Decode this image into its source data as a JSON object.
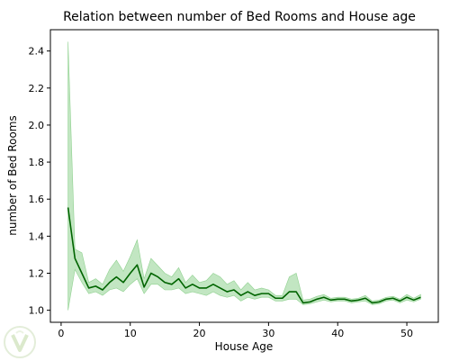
{
  "chart_data": {
    "type": "line",
    "title": "Relation between number of Bed Rooms and House age",
    "xlabel": "House Age",
    "ylabel": "number of Bed Rooms",
    "xlim": [
      -1.55,
      54.55
    ],
    "ylim": [
      0.935,
      2.515
    ],
    "xticks": [
      0,
      10,
      20,
      30,
      40,
      50
    ],
    "yticks": [
      1.0,
      1.2,
      1.4,
      1.6,
      1.8,
      2.0,
      2.2,
      2.4
    ],
    "ytick_labels": [
      "1.0",
      "1.2",
      "1.4",
      "1.6",
      "1.8",
      "2.0",
      "2.2",
      "2.4"
    ],
    "grid": false,
    "colors": {
      "line": "#006400",
      "band": "#8fd18f"
    },
    "series": [
      {
        "x": [
          1,
          2,
          3,
          4,
          5,
          6,
          7,
          8,
          9,
          10,
          11,
          12,
          13,
          14,
          15,
          16,
          17,
          18,
          19,
          20,
          21,
          22,
          23,
          24,
          25,
          26,
          27,
          28,
          29,
          30,
          31,
          32,
          33,
          34,
          35,
          36,
          37,
          38,
          39,
          40,
          41,
          42,
          43,
          44,
          45,
          46,
          47,
          48,
          49,
          50,
          51,
          52
        ],
        "y": [
          1.555,
          1.28,
          1.2,
          1.12,
          1.13,
          1.11,
          1.15,
          1.18,
          1.15,
          1.2,
          1.245,
          1.125,
          1.2,
          1.18,
          1.15,
          1.14,
          1.17,
          1.12,
          1.14,
          1.12,
          1.12,
          1.14,
          1.12,
          1.1,
          1.11,
          1.08,
          1.1,
          1.08,
          1.09,
          1.09,
          1.065,
          1.065,
          1.1,
          1.1,
          1.04,
          1.045,
          1.06,
          1.07,
          1.055,
          1.06,
          1.06,
          1.05,
          1.055,
          1.065,
          1.04,
          1.045,
          1.06,
          1.065,
          1.05,
          1.07,
          1.055,
          1.07
        ],
        "lower": [
          1.0,
          1.22,
          1.15,
          1.09,
          1.1,
          1.08,
          1.11,
          1.12,
          1.1,
          1.14,
          1.17,
          1.09,
          1.14,
          1.14,
          1.11,
          1.11,
          1.12,
          1.09,
          1.1,
          1.09,
          1.08,
          1.1,
          1.08,
          1.07,
          1.08,
          1.05,
          1.07,
          1.06,
          1.07,
          1.07,
          1.05,
          1.05,
          1.06,
          1.06,
          1.03,
          1.035,
          1.045,
          1.055,
          1.045,
          1.05,
          1.05,
          1.04,
          1.045,
          1.05,
          1.03,
          1.035,
          1.05,
          1.055,
          1.04,
          1.055,
          1.045,
          1.06
        ],
        "upper": [
          2.45,
          1.33,
          1.31,
          1.15,
          1.17,
          1.14,
          1.22,
          1.27,
          1.21,
          1.29,
          1.38,
          1.17,
          1.28,
          1.24,
          1.2,
          1.18,
          1.23,
          1.15,
          1.19,
          1.15,
          1.16,
          1.2,
          1.18,
          1.14,
          1.16,
          1.11,
          1.15,
          1.11,
          1.12,
          1.11,
          1.08,
          1.08,
          1.18,
          1.2,
          1.055,
          1.06,
          1.075,
          1.085,
          1.065,
          1.07,
          1.07,
          1.06,
          1.065,
          1.08,
          1.05,
          1.055,
          1.07,
          1.075,
          1.06,
          1.085,
          1.065,
          1.085
        ]
      }
    ]
  }
}
